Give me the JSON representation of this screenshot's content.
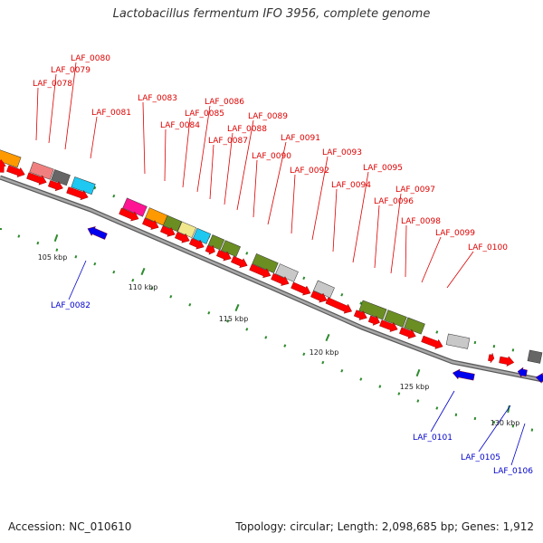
{
  "title": "Lactobacillus fermentum IFO 3956, complete genome",
  "footer": {
    "accession": "Accession: NC_010610",
    "stats": "Topology: circular; Length: 2,098,685 bp; Genes: 1,912"
  },
  "colors": {
    "backbone": "#8c8c8c",
    "forward_arrow": "#ff0000",
    "reverse_arrow": "#0000ee",
    "forward_label": "#dd0000",
    "reverse_label": "#0000cc",
    "tick": "#2e8b2e"
  },
  "kbp_labels": [
    "105 kbp",
    "110 kbp",
    "115 kbp",
    "120 kbp",
    "125 kbp",
    "130 kbp"
  ],
  "forward_labels": [
    "LAF_0078",
    "LAF_0079",
    "LAF_0080",
    "LAF_0081",
    "LAF_0083",
    "LAF_0084",
    "LAF_0085",
    "LAF_0086",
    "LAF_0087",
    "LAF_0088",
    "LAF_0089",
    "LAF_0090",
    "LAF_0091",
    "LAF_0092",
    "LAF_0093",
    "LAF_0094",
    "LAF_0095",
    "LAF_0096",
    "LAF_0097",
    "LAF_0098",
    "LAF_0099",
    "LAF_0100"
  ],
  "reverse_labels": [
    "LAF_0082",
    "LAF_0101",
    "LAF_0105",
    "LAF_0106"
  ]
}
